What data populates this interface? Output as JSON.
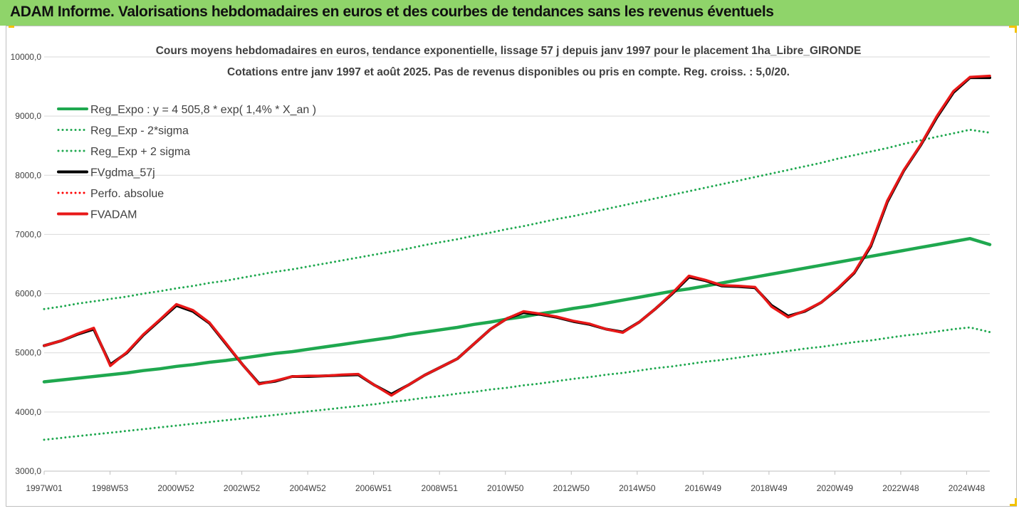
{
  "banner": {
    "title": "ADAM Informe. Valorisations hebdomadaires en euros et des courbes de tendances sans les revenus éventuels"
  },
  "chart_data": {
    "type": "line",
    "title": "Cours moyens hebdomadaires en euros, tendance exponentielle, lissage 57 j depuis janv 1997  pour le placement 1ha_Libre_GIRONDE",
    "subtitle": "Cotations entre janv 1997 et août 2025.  Pas de revenus disponibles ou pris en compte. Reg. croiss. : 5,0/20.",
    "xlabel": "",
    "ylabel": "",
    "ylim": [
      3000,
      10000
    ],
    "yticks": [
      "3000,0",
      "4000,0",
      "5000,0",
      "6000,0",
      "7000,0",
      "8000,0",
      "9000,0",
      "10000,0"
    ],
    "xticks": [
      "1997W01",
      "1998W53",
      "2000W52",
      "2002W52",
      "2004W52",
      "2006W51",
      "2008W51",
      "2010W50",
      "2012W50",
      "2014W50",
      "2016W49",
      "2018W49",
      "2020W49",
      "2022W48",
      "2024W48"
    ],
    "grid": true,
    "legend_position": "top-left",
    "x": [
      1997.0,
      1997.5,
      1998.0,
      1998.5,
      1999.0,
      1999.5,
      2000.0,
      2000.5,
      2001.0,
      2001.5,
      2002.0,
      2002.5,
      2003.0,
      2003.5,
      2004.0,
      2004.5,
      2005.0,
      2005.5,
      2006.0,
      2006.5,
      2007.0,
      2007.5,
      2008.0,
      2008.5,
      2009.0,
      2009.5,
      2010.0,
      2010.5,
      2011.0,
      2011.5,
      2012.0,
      2012.5,
      2013.0,
      2013.5,
      2014.0,
      2014.5,
      2015.0,
      2015.5,
      2016.0,
      2016.5,
      2017.0,
      2017.5,
      2018.0,
      2018.5,
      2019.0,
      2019.5,
      2020.0,
      2020.5,
      2021.0,
      2021.5,
      2022.0,
      2022.5,
      2023.0,
      2023.5,
      2024.0,
      2024.5,
      2025.0,
      2025.6
    ],
    "series": [
      {
        "name": "Reg_Expo : y = 4 505,8 * exp( 1,4% *  X_an )",
        "color": "#1fa84f",
        "style": "solid",
        "values": [
          4510,
          4540,
          4570,
          4600,
          4630,
          4660,
          4700,
          4730,
          4770,
          4800,
          4840,
          4870,
          4910,
          4950,
          4990,
          5020,
          5060,
          5100,
          5140,
          5180,
          5220,
          5260,
          5310,
          5350,
          5390,
          5430,
          5480,
          5520,
          5570,
          5610,
          5660,
          5700,
          5750,
          5790,
          5840,
          5890,
          5940,
          5990,
          6040,
          6080,
          6130,
          6180,
          6230,
          6280,
          6330,
          6380,
          6430,
          6480,
          6530,
          6580,
          6630,
          6680,
          6730,
          6780,
          6830,
          6880,
          6930,
          6830
        ]
      },
      {
        "name": "Reg_Exp - 2*sigma",
        "color": "#1fa84f",
        "style": "dotted",
        "values": [
          3530,
          3560,
          3590,
          3620,
          3650,
          3680,
          3710,
          3740,
          3770,
          3800,
          3830,
          3860,
          3890,
          3920,
          3950,
          3980,
          4010,
          4040,
          4070,
          4100,
          4130,
          4170,
          4200,
          4240,
          4270,
          4310,
          4340,
          4380,
          4410,
          4450,
          4480,
          4520,
          4560,
          4590,
          4630,
          4660,
          4700,
          4740,
          4770,
          4810,
          4850,
          4880,
          4920,
          4960,
          4990,
          5030,
          5070,
          5100,
          5140,
          5180,
          5210,
          5250,
          5290,
          5320,
          5360,
          5400,
          5430,
          5350
        ]
      },
      {
        "name": "Reg_Exp + 2 sigma",
        "color": "#1fa84f",
        "style": "dotted",
        "values": [
          5740,
          5780,
          5830,
          5870,
          5910,
          5950,
          6000,
          6040,
          6090,
          6130,
          6180,
          6220,
          6270,
          6320,
          6370,
          6410,
          6460,
          6510,
          6560,
          6610,
          6660,
          6710,
          6760,
          6820,
          6870,
          6920,
          6980,
          7030,
          7090,
          7140,
          7200,
          7260,
          7310,
          7370,
          7430,
          7490,
          7550,
          7610,
          7670,
          7730,
          7790,
          7850,
          7910,
          7970,
          8030,
          8090,
          8150,
          8210,
          8280,
          8340,
          8400,
          8460,
          8530,
          8590,
          8650,
          8710,
          8770,
          8720
        ]
      },
      {
        "name": "FVgdma_57j",
        "color": "#000000",
        "style": "solid",
        "values": [
          5120,
          5200,
          5310,
          5400,
          4800,
          5000,
          5300,
          5550,
          5800,
          5700,
          5500,
          5150,
          4800,
          4480,
          4520,
          4600,
          4600,
          4610,
          4620,
          4630,
          4450,
          4300,
          4450,
          4620,
          4760,
          4900,
          5150,
          5400,
          5580,
          5680,
          5650,
          5600,
          5530,
          5480,
          5400,
          5350,
          5520,
          5750,
          6000,
          6280,
          6220,
          6130,
          6120,
          6100,
          5800,
          5620,
          5700,
          5850,
          6080,
          6350,
          6800,
          7550,
          8080,
          8500,
          8980,
          9400,
          9650,
          9650
        ]
      },
      {
        "name": "Perfo. absolue",
        "color": "#ff0000",
        "style": "dotted",
        "values": [
          5120,
          5200,
          5320,
          5420,
          4780,
          5010,
          5310,
          5560,
          5820,
          5720,
          5510,
          5160,
          4800,
          4470,
          4530,
          4600,
          4610,
          4610,
          4630,
          4640,
          4450,
          4280,
          4450,
          4620,
          4760,
          4900,
          5150,
          5400,
          5580,
          5700,
          5660,
          5610,
          5540,
          5490,
          5400,
          5340,
          5520,
          5750,
          6010,
          6300,
          6230,
          6140,
          6130,
          6110,
          5780,
          5600,
          5710,
          5850,
          6090,
          6360,
          6820,
          7570,
          8090,
          8510,
          9000,
          9420,
          9660,
          9680
        ]
      },
      {
        "name": "FVADAM",
        "color": "#e81818",
        "style": "solid",
        "values": [
          5120,
          5200,
          5320,
          5420,
          4780,
          5010,
          5310,
          5560,
          5820,
          5720,
          5510,
          5160,
          4800,
          4470,
          4530,
          4600,
          4610,
          4610,
          4630,
          4640,
          4450,
          4280,
          4450,
          4620,
          4760,
          4900,
          5150,
          5400,
          5580,
          5700,
          5660,
          5610,
          5540,
          5490,
          5400,
          5340,
          5520,
          5750,
          6010,
          6300,
          6230,
          6140,
          6130,
          6110,
          5780,
          5600,
          5710,
          5850,
          6090,
          6360,
          6820,
          7570,
          8090,
          8510,
          9000,
          9420,
          9660,
          9680
        ]
      }
    ]
  },
  "colors": {
    "banner": "#8fd46a",
    "grid": "#d9d9d9",
    "accent": "#f2c200"
  }
}
